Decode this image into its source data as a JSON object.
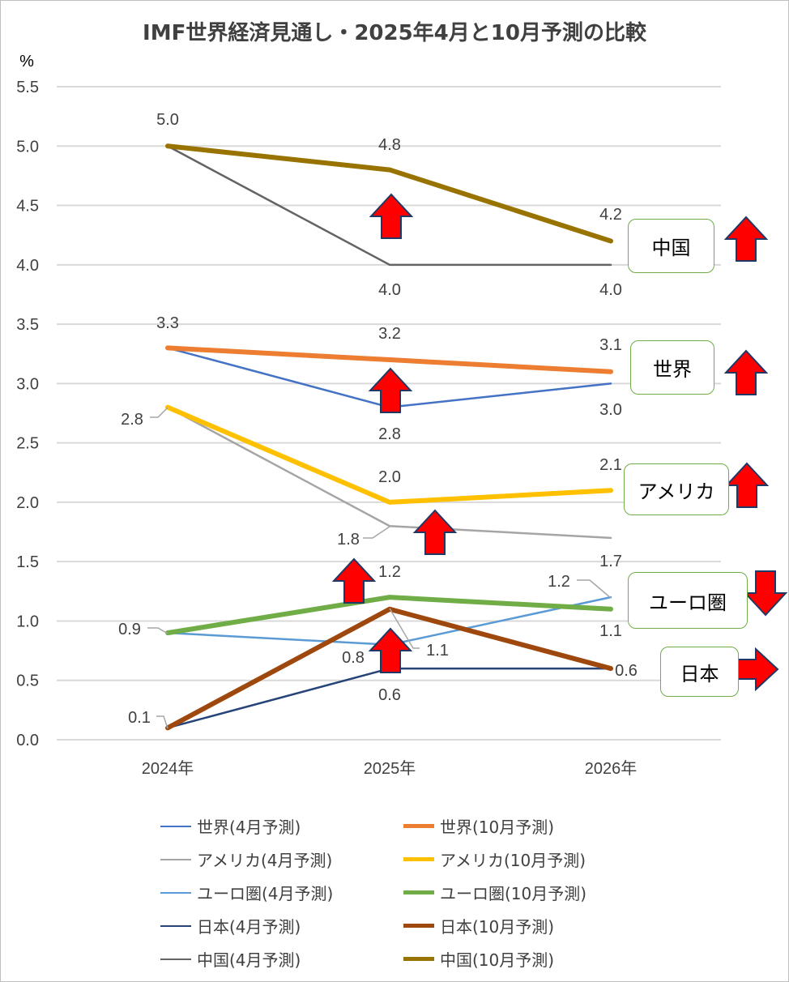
{
  "chart_data": {
    "type": "line",
    "title": "IMF世界経済見通し・2025年4月と10月予測の比較",
    "ylabel": "%",
    "categories": [
      "2024年",
      "2025年",
      "2026年"
    ],
    "ylim": [
      0,
      5.5
    ],
    "yticks": [
      "0.0",
      "0.5",
      "1.0",
      "1.5",
      "2.0",
      "2.5",
      "3.0",
      "3.5",
      "4.0",
      "4.5",
      "5.0",
      "5.5"
    ],
    "grid": true,
    "legend_position": "bottom",
    "series": [
      {
        "name": "世界(4月予測)",
        "values": [
          3.3,
          2.8,
          3.0
        ],
        "color": "#4472c4"
      },
      {
        "name": "世界(10月予測)",
        "values": [
          3.3,
          3.2,
          3.1
        ],
        "color": "#ed7d31"
      },
      {
        "name": "アメリカ(4月予測)",
        "values": [
          2.8,
          1.8,
          1.7
        ],
        "color": "#a5a5a5"
      },
      {
        "name": "アメリカ(10月予測)",
        "values": [
          2.8,
          2.0,
          2.1
        ],
        "color": "#ffc000"
      },
      {
        "name": "ユーロ圏(4月予測)",
        "values": [
          0.9,
          0.8,
          1.2
        ],
        "color": "#5b9bd5"
      },
      {
        "name": "ユーロ圏(10月予測)",
        "values": [
          0.9,
          1.2,
          1.1
        ],
        "color": "#70ad47"
      },
      {
        "name": "日本(4月予測)",
        "values": [
          0.1,
          0.6,
          0.6
        ],
        "color": "#264478"
      },
      {
        "name": "日本(10月予測)",
        "values": [
          0.1,
          1.1,
          0.6
        ],
        "color": "#9e480e"
      },
      {
        "name": "中国(4月予測)",
        "values": [
          5.0,
          4.0,
          4.0
        ],
        "color": "#636363"
      },
      {
        "name": "中国(10月予測)",
        "values": [
          5.0,
          4.8,
          4.2
        ],
        "color": "#997300"
      }
    ],
    "annotations": [
      {
        "label": "中国",
        "direction": "up"
      },
      {
        "label": "世界",
        "direction": "up"
      },
      {
        "label": "アメリカ",
        "direction": "up"
      },
      {
        "label": "ユーロ圏",
        "direction": "down"
      },
      {
        "label": "日本",
        "direction": "right"
      }
    ]
  }
}
